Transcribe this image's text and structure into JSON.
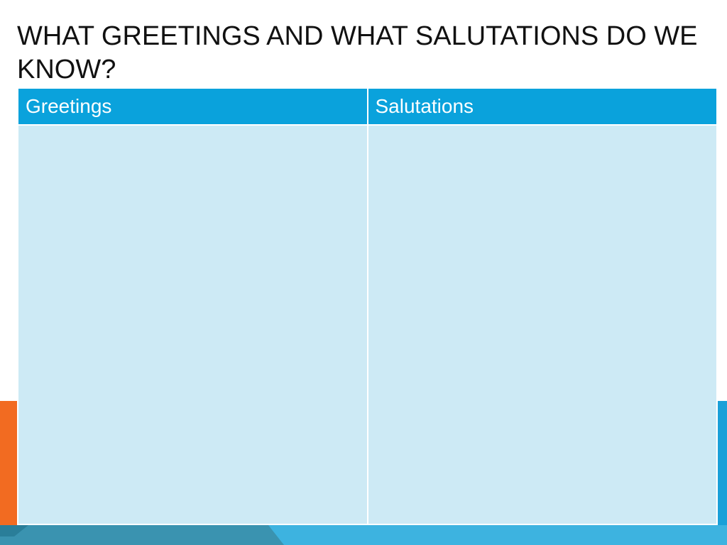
{
  "header": {
    "title": "WHAT GREETINGS AND WHAT SALUTATIONS DO WE KNOW?"
  },
  "table": {
    "columns": [
      "Greetings",
      "Salutations"
    ]
  }
}
